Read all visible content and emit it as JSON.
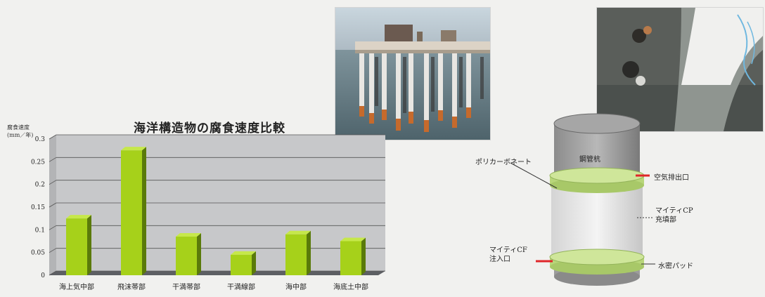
{
  "chart_data": {
    "type": "bar",
    "title": "海洋構造物の腐食速度比較",
    "ylabel_line1": "腐食速度",
    "ylabel_line2": "(mm／年)",
    "categories": [
      "海上気中部",
      "飛沫帯部",
      "干満帯部",
      "干満線部",
      "海中部",
      "海底土中部"
    ],
    "values": [
      0.125,
      0.275,
      0.085,
      0.045,
      0.09,
      0.075
    ],
    "yticks": [
      "0.3",
      "0.25",
      "0.2",
      "0.15",
      "0.1",
      "0.05",
      "0"
    ],
    "ylim": [
      0,
      0.3
    ],
    "grid": true,
    "colors": {
      "bar_front": "#a6d11a",
      "bar_side": "#5a7a0a",
      "bar_top": "#c6e84a",
      "wall": "#c7c8ca"
    }
  },
  "diagram": {
    "pile_label": "鋼管杭",
    "polycarbonate_label": "ポリカーボネート",
    "air_outlet_label": "空気排出口",
    "mighty_cp_fill_line1": "マイティCP",
    "mighty_cp_fill_line2": "充填部",
    "mighty_cp_inlet_line1": "マイティCF",
    "mighty_cp_inlet_line2": "注入口",
    "waterproof_pad_label": "水密パッド",
    "colors": {
      "marker_red": "#e0262a",
      "ring_green": "#b8d67a"
    }
  }
}
